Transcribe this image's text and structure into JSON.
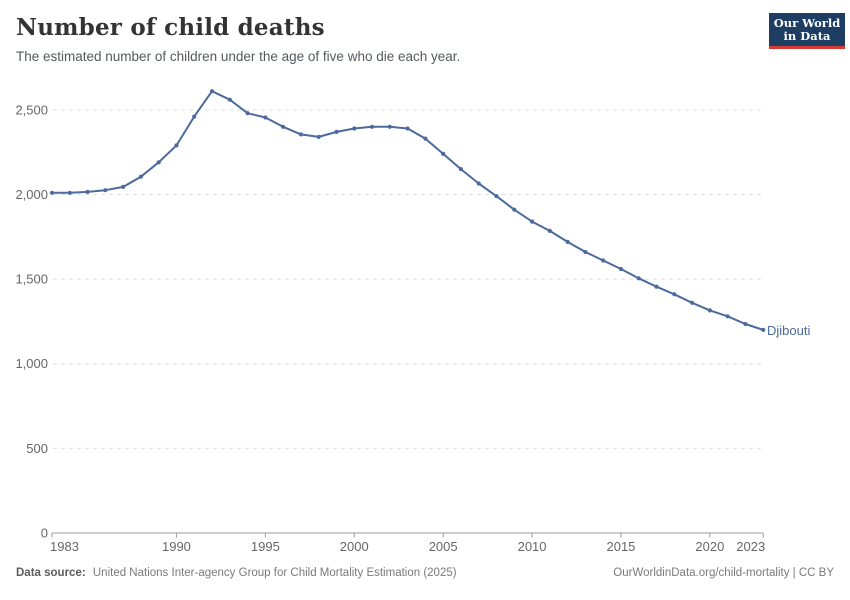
{
  "header": {
    "title": "Number of child deaths",
    "subtitle": "The estimated number of children under the age of five who die each year.",
    "logo": {
      "line1": "Our World",
      "line2": "in Data",
      "bg_color": "#1d3d63",
      "bar_color": "#d73a36",
      "text_color": "#ffffff"
    }
  },
  "chart_data": {
    "type": "line",
    "title": "Number of child deaths",
    "series_label": "Djibouti",
    "line_color": "#4c6a9c",
    "grid": "horizontal dashed",
    "legend_position": "end-of-line label",
    "xlim": [
      1983,
      2023
    ],
    "ylim": [
      0,
      2650
    ],
    "x": [
      1983,
      1984,
      1985,
      1986,
      1987,
      1988,
      1989,
      1990,
      1991,
      1992,
      1993,
      1994,
      1995,
      1996,
      1997,
      1998,
      1999,
      2000,
      2001,
      2002,
      2003,
      2004,
      2005,
      2006,
      2007,
      2008,
      2009,
      2010,
      2011,
      2012,
      2013,
      2014,
      2015,
      2016,
      2017,
      2018,
      2019,
      2020,
      2021,
      2022,
      2023
    ],
    "values": [
      2010,
      2010,
      2015,
      2025,
      2045,
      2105,
      2190,
      2290,
      2460,
      2610,
      2560,
      2480,
      2455,
      2400,
      2355,
      2340,
      2370,
      2390,
      2400,
      2400,
      2390,
      2330,
      2240,
      2150,
      2065,
      1990,
      1910,
      1840,
      1785,
      1720,
      1660,
      1610,
      1560,
      1505,
      1455,
      1410,
      1360,
      1315,
      1280,
      1235,
      1200
    ],
    "xticks": [
      1983,
      1990,
      1995,
      2000,
      2005,
      2010,
      2015,
      2020,
      2023
    ],
    "yticks": [
      0,
      500,
      1000,
      1500,
      2000,
      2500
    ],
    "xlabel": "",
    "ylabel": ""
  },
  "footer": {
    "datasource_label": "Data source:",
    "datasource_text": "United Nations Inter-agency Group for Child Mortality Estimation (2025)",
    "license_text": "OurWorldinData.org/child-mortality | CC BY"
  }
}
